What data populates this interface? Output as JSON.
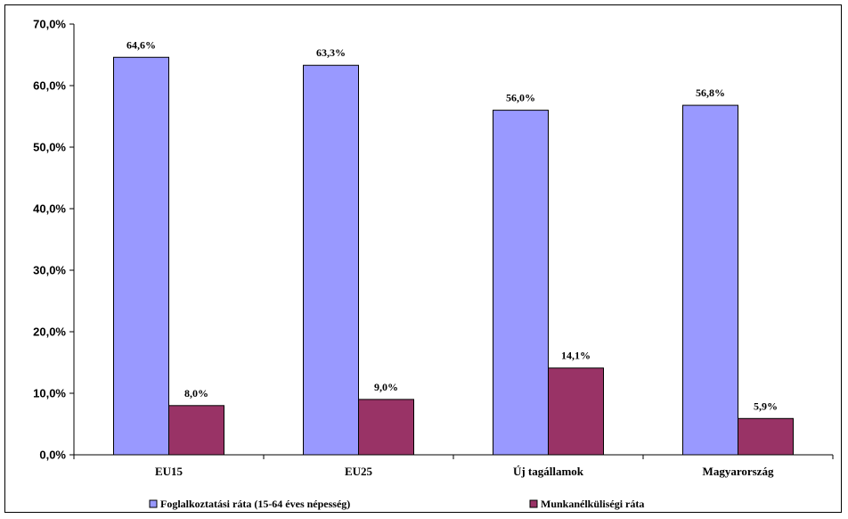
{
  "chart_data": {
    "type": "bar",
    "categories": [
      "EU15",
      "EU25",
      "Új tagállamok",
      "Magyarország"
    ],
    "series": [
      {
        "name": "Foglalkoztatási ráta (15-64 éves népesség)",
        "values": [
          64.6,
          63.3,
          56.0,
          56.8
        ],
        "labels": [
          "64,6%",
          "63,3%",
          "56,0%",
          "56,8%"
        ],
        "color": "#9999ff"
      },
      {
        "name": "Munkanélküliségi ráta",
        "values": [
          8.0,
          9.0,
          14.1,
          5.9
        ],
        "labels": [
          "8,0%",
          "9,0%",
          "14,1%",
          "5,9%"
        ],
        "color": "#993366"
      }
    ],
    "ylim": [
      0,
      70
    ],
    "yticks": [
      0,
      10,
      20,
      30,
      40,
      50,
      60,
      70
    ],
    "ytick_labels": [
      "0,0%",
      "10,0%",
      "20,0%",
      "30,0%",
      "40,0%",
      "50,0%",
      "60,0%",
      "70,0%"
    ],
    "grid": false,
    "legend_position": "bottom"
  }
}
